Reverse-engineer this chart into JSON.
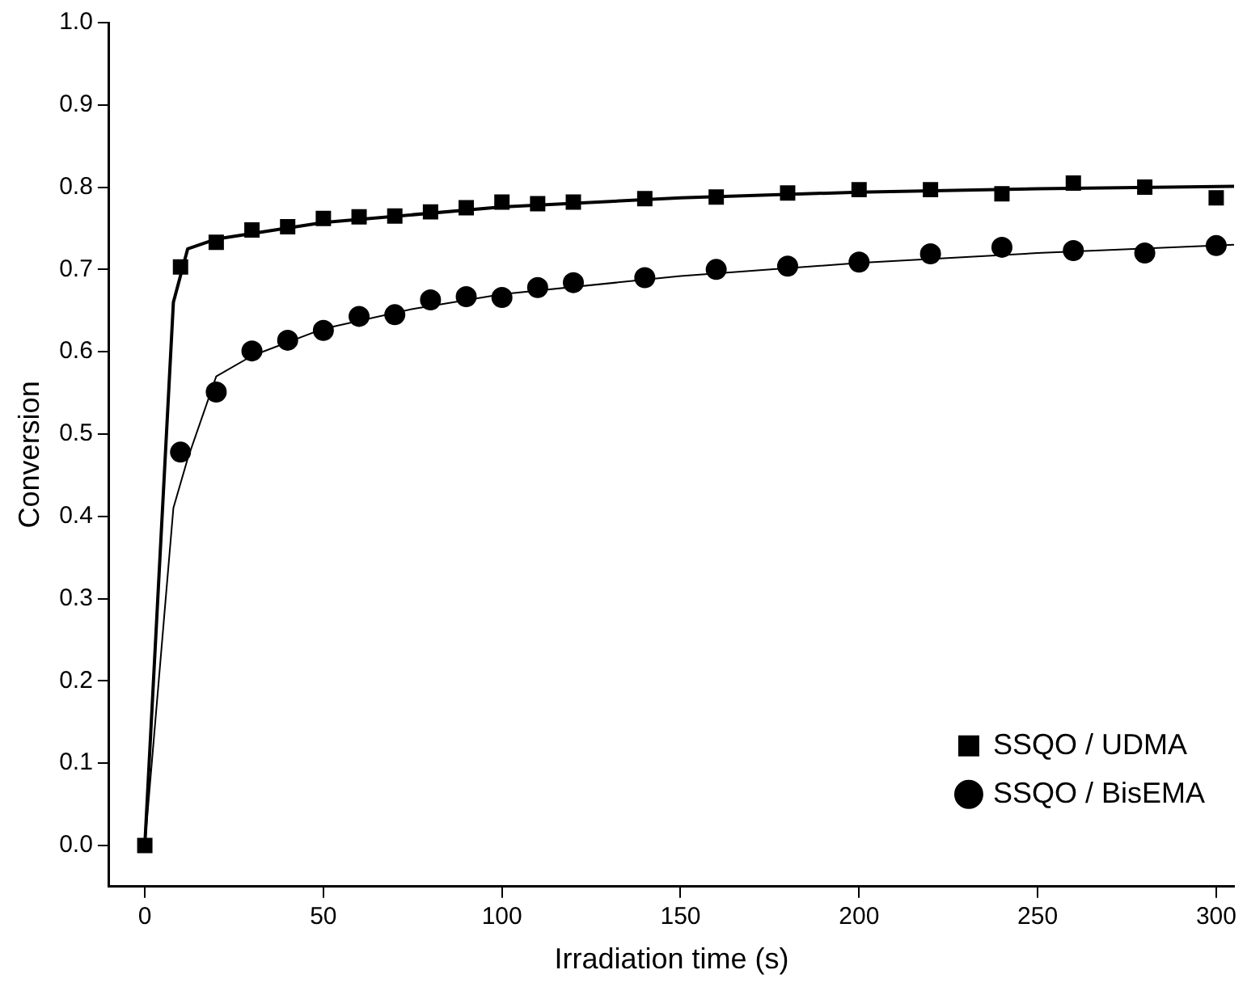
{
  "chart_data": {
    "type": "scatter",
    "xlabel": "Irradiation time (s)",
    "ylabel": "Conversion",
    "xlim": [
      -10,
      305
    ],
    "xticks": [
      0,
      50,
      100,
      150,
      200,
      250,
      300
    ],
    "ylim": [
      -0.05,
      1.0
    ],
    "yticks": [
      {
        "value": 0,
        "label": "0.0"
      },
      0.1,
      0.2,
      0.3,
      0.4,
      0.5,
      0.6,
      0.7,
      0.8,
      0.9,
      {
        "value": 1,
        "label": "1.0"
      }
    ],
    "grid": false,
    "legend": "bottom right",
    "series": [
      {
        "name": "SSQO / UDMA",
        "type": "scatter",
        "marker": "square",
        "color": "#000000",
        "x": [
          0,
          10,
          20,
          30,
          40,
          50,
          60,
          70,
          80,
          90,
          100,
          110,
          120,
          140,
          160,
          180,
          200,
          220,
          240,
          260,
          280,
          300
        ],
        "values": [
          0,
          0.703,
          0.733,
          0.748,
          0.752,
          0.762,
          0.764,
          0.765,
          0.77,
          0.775,
          0.782,
          0.78,
          0.782,
          0.786,
          0.788,
          0.793,
          0.797,
          0.797,
          0.792,
          0.805,
          0.8,
          0.787
        ]
      },
      {
        "name": "SSQO / BisEMA",
        "type": "scatter",
        "marker": "circle",
        "color": "#000000",
        "x": [
          10,
          20,
          30,
          40,
          50,
          60,
          70,
          80,
          90,
          100,
          110,
          120,
          140,
          160,
          180,
          200,
          220,
          240,
          260,
          280,
          300
        ],
        "values": [
          0.478,
          0.551,
          0.601,
          0.614,
          0.626,
          0.643,
          0.645,
          0.663,
          0.667,
          0.666,
          0.678,
          0.684,
          0.69,
          0.7,
          0.704,
          0.709,
          0.719,
          0.727,
          0.723,
          0.72,
          0.729
        ]
      },
      {
        "type": "line",
        "marker": "none",
        "color": "#000000",
        "x": [
          0,
          8,
          12,
          20,
          50,
          100,
          150,
          200,
          250,
          305
        ],
        "values": [
          0,
          0.66,
          0.725,
          0.737,
          0.757,
          0.776,
          0.787,
          0.794,
          0.798,
          0.801
        ]
      },
      {
        "type": "line",
        "marker": "none",
        "color": "#000000",
        "x": [
          0,
          8,
          12,
          20,
          30,
          50,
          75,
          100,
          150,
          200,
          250,
          305
        ],
        "values": [
          0,
          0.41,
          0.47,
          0.57,
          0.595,
          0.628,
          0.652,
          0.67,
          0.692,
          0.708,
          0.72,
          0.73
        ]
      }
    ]
  }
}
